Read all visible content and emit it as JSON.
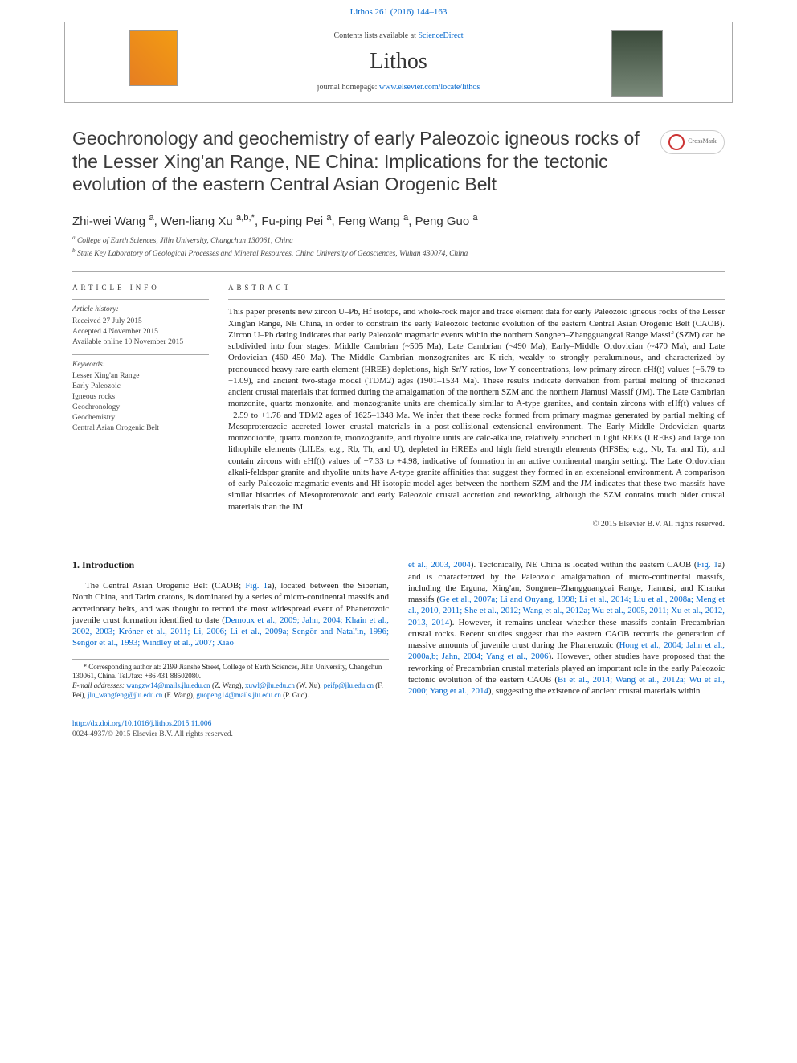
{
  "top_link": {
    "text": "Lithos 261 (2016) 144–163",
    "href": "#"
  },
  "journal_header": {
    "contents_line_prefix": "Contents lists available at ",
    "contents_link": "ScienceDirect",
    "journal_title": "Lithos",
    "homepage_prefix": "journal homepage: ",
    "homepage_link": "www.elsevier.com/locate/lithos"
  },
  "article_title": "Geochronology and geochemistry of early Paleozoic igneous rocks of the Lesser Xing'an Range, NE China: Implications for the tectonic evolution of the eastern Central Asian Orogenic Belt",
  "crossmark_label": "CrossMark",
  "authors": [
    {
      "name": "Zhi-wei Wang",
      "sup": "a"
    },
    {
      "name": "Wen-liang Xu",
      "sup": "a,b,*"
    },
    {
      "name": "Fu-ping Pei",
      "sup": "a"
    },
    {
      "name": "Feng Wang",
      "sup": "a"
    },
    {
      "name": "Peng Guo",
      "sup": "a"
    }
  ],
  "affiliations": [
    {
      "sup": "a",
      "text": "College of Earth Sciences, Jilin University, Changchun 130061, China"
    },
    {
      "sup": "b",
      "text": "State Key Laboratory of Geological Processes and Mineral Resources, China University of Geosciences, Wuhan 430074, China"
    }
  ],
  "article_info": {
    "heading": "ARTICLE INFO",
    "history_label": "Article history:",
    "history_lines": [
      "Received 27 July 2015",
      "Accepted 4 November 2015",
      "Available online 10 November 2015"
    ],
    "keywords_label": "Keywords:",
    "keywords": [
      "Lesser Xing'an Range",
      "Early Paleozoic",
      "Igneous rocks",
      "Geochronology",
      "Geochemistry",
      "Central Asian Orogenic Belt"
    ]
  },
  "abstract": {
    "heading": "ABSTRACT",
    "body": "This paper presents new zircon U–Pb, Hf isotope, and whole-rock major and trace element data for early Paleozoic igneous rocks of the Lesser Xing'an Range, NE China, in order to constrain the early Paleozoic tectonic evolution of the eastern Central Asian Orogenic Belt (CAOB). Zircon U–Pb dating indicates that early Paleozoic magmatic events within the northern Songnen–Zhangguangcai Range Massif (SZM) can be subdivided into four stages: Middle Cambrian (~505 Ma), Late Cambrian (~490 Ma), Early–Middle Ordovician (~470 Ma), and Late Ordovician (460–450 Ma). The Middle Cambrian monzogranites are K-rich, weakly to strongly peraluminous, and characterized by pronounced heavy rare earth element (HREE) depletions, high Sr/Y ratios, low Y concentrations, low primary zircon εHf(t) values (−6.79 to −1.09), and ancient two-stage model (TDM2) ages (1901–1534 Ma). These results indicate derivation from partial melting of thickened ancient crustal materials that formed during the amalgamation of the northern SZM and the northern Jiamusi Massif (JM). The Late Cambrian monzonite, quartz monzonite, and monzogranite units are chemically similar to A-type granites, and contain zircons with εHf(t) values of −2.59 to +1.78 and TDM2 ages of 1625–1348 Ma. We infer that these rocks formed from primary magmas generated by partial melting of Mesoproterozoic accreted lower crustal materials in a post-collisional extensional environment. The Early–Middle Ordovician quartz monzodiorite, quartz monzonite, monzogranite, and rhyolite units are calc-alkaline, relatively enriched in light REEs (LREEs) and large ion lithophile elements (LILEs; e.g., Rb, Th, and U), depleted in HREEs and high field strength elements (HFSEs; e.g., Nb, Ta, and Ti), and contain zircons with εHf(t) values of −7.33 to +4.98, indicative of formation in an active continental margin setting. The Late Ordovician alkali-feldspar granite and rhyolite units have A-type granite affinities that suggest they formed in an extensional environment. A comparison of early Paleozoic magmatic events and Hf isotopic model ages between the northern SZM and the JM indicates that these two massifs have similar histories of Mesoproterozoic and early Paleozoic crustal accretion and reworking, although the SZM contains much older crustal materials than the JM.",
    "copyright": "© 2015 Elsevier B.V. All rights reserved."
  },
  "section1": {
    "heading": "1. Introduction",
    "para1_pre": "The Central Asian Orogenic Belt (CAOB; ",
    "para1_figref": "Fig. 1",
    "para1_mid": "a), located between the Siberian, North China, and Tarim cratons, is dominated by a series of micro-continental massifs and accretionary belts, and was thought to record the most widespread event of Phanerozoic juvenile crust formation identified to date (",
    "para1_refs": "Demoux et al., 2009; Jahn, 2004; Khain et al., 2002, 2003; Kröner et al., 2011; Li, 2006; Li et al., 2009a; Sengör and Natal'in, 1996; Sengör et al., 1993; Windley et al., 2007; Xiao",
    "col2_refs_cont": "et al., 2003, 2004",
    "col2_mid1": "). Tectonically, NE China is located within the eastern CAOB (",
    "col2_figref": "Fig. 1",
    "col2_mid2": "a) and is characterized by the Paleozoic amalgamation of micro-continental massifs, including the Erguna, Xing'an, Songnen–Zhangguangcai Range, Jiamusi, and Khanka massifs (",
    "col2_refs2": "Ge et al., 2007a; Li and Ouyang, 1998; Li et al., 2014; Liu et al., 2008a; Meng et al., 2010, 2011; She et al., 2012; Wang et al., 2012a; Wu et al., 2005, 2011; Xu et al., 2012, 2013, 2014",
    "col2_mid3": "). However, it remains unclear whether these massifs contain Precambrian crustal rocks. Recent studies suggest that the eastern CAOB records the generation of massive amounts of juvenile crust during the Phanerozoic (",
    "col2_refs3": "Hong et al., 2004; Jahn et al., 2000a,b; Jahn, 2004; Yang et al., 2006",
    "col2_mid4": "). However, other studies have proposed that the reworking of Precambrian crustal materials played an important role in the early Paleozoic tectonic evolution of the eastern CAOB (",
    "col2_refs4": "Bi et al., 2014; Wang et al., 2012a; Wu et al., 2000; Yang et al., 2014",
    "col2_end": "), suggesting the existence of ancient crustal materials within"
  },
  "footnotes": {
    "corr_label": "* Corresponding author at: 2199 Jianshe Street, College of Earth Sciences, Jilin University, Changchun 130061, China. Tel./fax: +86 431 88502080.",
    "email_label": "E-mail addresses: ",
    "emails": [
      {
        "addr": "wangzw14@mails.jlu.edu.cn",
        "who": " (Z. Wang), "
      },
      {
        "addr": "xuwl@jlu.edu.cn",
        "who": " (W. Xu), "
      },
      {
        "addr": "peifp@jlu.edu.cn",
        "who": " (F. Pei), "
      },
      {
        "addr": "jlu_wangfeng@jlu.edu.cn",
        "who": " (F. Wang), "
      },
      {
        "addr": "guopeng14@mails.jlu.edu.cn",
        "who": " (P. Guo)."
      }
    ]
  },
  "footer": {
    "doi": "http://dx.doi.org/10.1016/j.lithos.2015.11.006",
    "issn_line": "0024-4937/© 2015 Elsevier B.V. All rights reserved."
  },
  "colors": {
    "link": "#0066cc",
    "text": "#222222",
    "rule": "#aaaaaa"
  }
}
